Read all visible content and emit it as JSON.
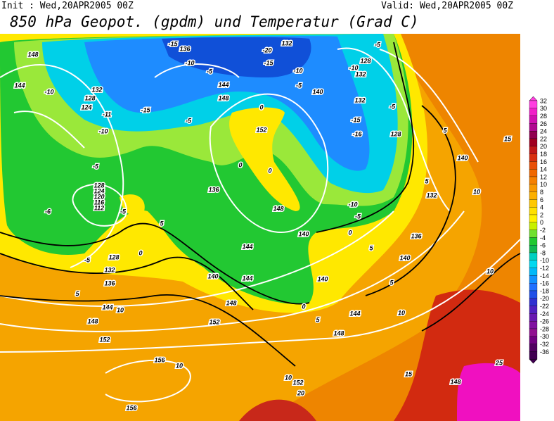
{
  "header": {
    "init": "Init : Wed,20APR2005 00Z",
    "valid": "Valid: Wed,20APR2005 00Z",
    "title": "850 hPa Geopot. (gpdm) und Temperatur (Grad C)"
  },
  "colorbar": {
    "labels": [
      32,
      30,
      28,
      26,
      24,
      22,
      20,
      18,
      16,
      14,
      12,
      10,
      8,
      6,
      4,
      2,
      0,
      -2,
      -4,
      -6,
      -8,
      -10,
      -12,
      -14,
      -16,
      -18,
      -20,
      -22,
      -24,
      -26,
      -28,
      -30,
      -32,
      -36
    ]
  },
  "contour_labels": [
    148,
    144,
    132,
    128,
    124,
    -10,
    -11,
    -10,
    -5,
    -15,
    136,
    -10,
    -5,
    144,
    148,
    -15,
    -5,
    0,
    152,
    132,
    -20,
    -15,
    -10,
    -5,
    140,
    128,
    -10,
    132,
    -5,
    132,
    -5,
    -15,
    -16,
    128,
    5,
    140,
    15,
    132,
    5,
    10,
    0,
    0,
    136,
    148,
    -10,
    -5,
    140,
    0,
    144,
    128,
    124,
    120,
    116,
    112,
    -5,
    -6,
    5,
    0,
    -5,
    128,
    132,
    136,
    140,
    144,
    5,
    136,
    140,
    5,
    10,
    140,
    148,
    5,
    144,
    10,
    0,
    144,
    10,
    148,
    152,
    5,
    148,
    152,
    156,
    10,
    10,
    152,
    20,
    15,
    148,
    25,
    156
  ]
}
